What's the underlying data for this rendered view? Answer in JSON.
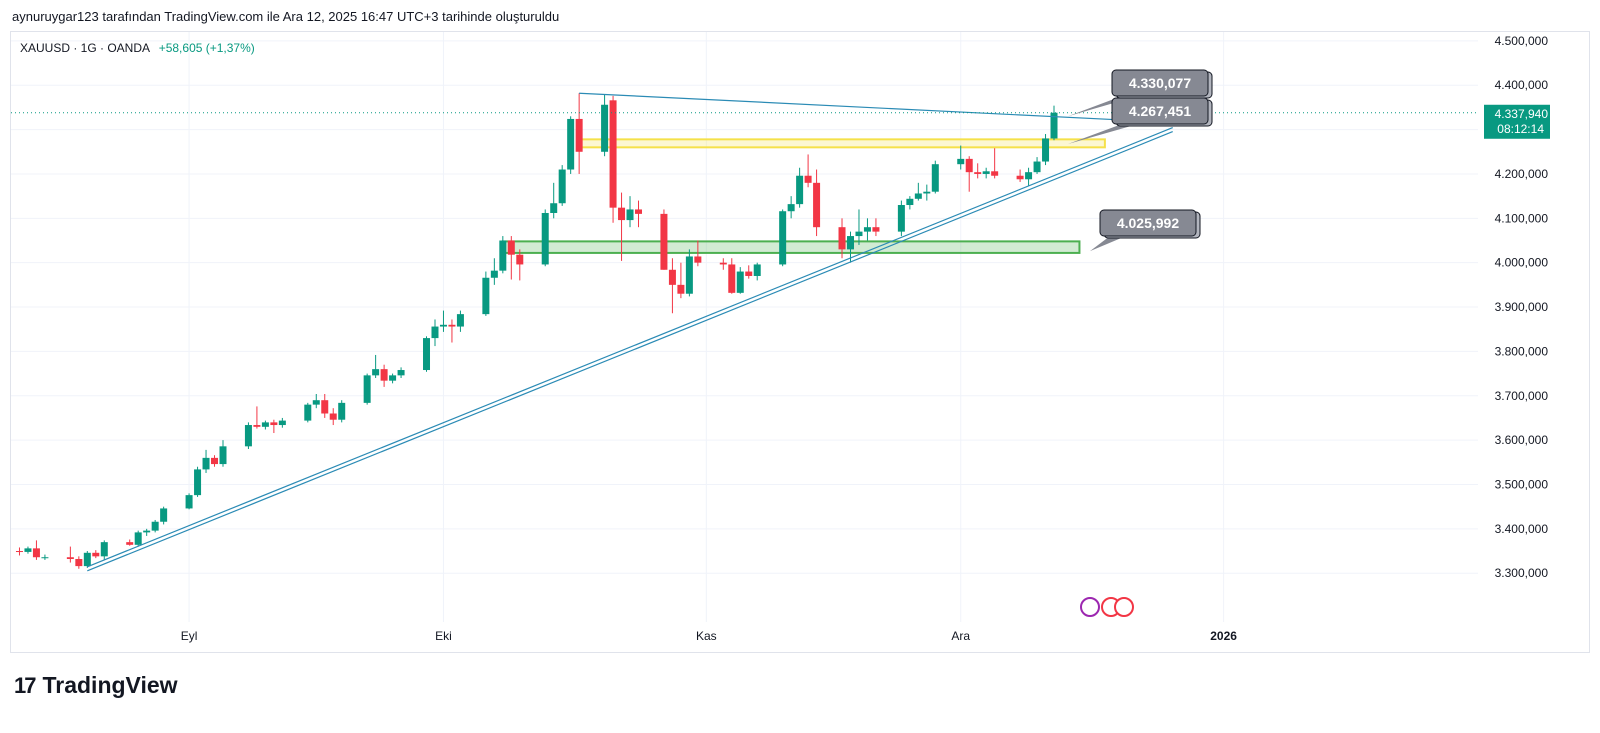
{
  "header": {
    "caption": "aynuruygar123 tarafından TradingView.com ile Ara 12, 2025 16:47 UTC+3 tarihinde oluşturuldu"
  },
  "legend": {
    "symbol": "XAUUSD · 1G · OANDA",
    "change": "+58,605 (+1,37%)"
  },
  "brand": {
    "logo": "17",
    "name": "TradingView"
  },
  "colors": {
    "up": "#089981",
    "down": "#f23645",
    "trendline": "#2b8bb5",
    "yellow_zone": "#f5e14a",
    "green_zone": "#4caf50",
    "callout": "#868993"
  },
  "chart_data": {
    "type": "candlestick",
    "symbol": "XAUUSD",
    "interval": "1G",
    "ylim": [
      3190000,
      4520000
    ],
    "y_ticks": [
      3300000,
      3400000,
      3500000,
      3600000,
      3700000,
      3800000,
      3900000,
      4000000,
      4100000,
      4200000,
      4300000,
      4400000,
      4500000
    ],
    "y_tick_labels": [
      "3.300,000",
      "3.400,000",
      "3.500,000",
      "3.600,000",
      "3.700,000",
      "3.800,000",
      "3.900,000",
      "4.000,000",
      "4.100,000",
      "4.200,000",
      "4.300,000",
      "4.400,000",
      "4.500,000"
    ],
    "x_labels": [
      {
        "label": "Eyl",
        "date": "2025-09-01"
      },
      {
        "label": "Eki",
        "date": "2025-10-01"
      },
      {
        "label": "Kas",
        "date": "2025-11-01"
      },
      {
        "label": "Ara",
        "date": "2025-12-01"
      },
      {
        "label": "2026",
        "date": "2026-01-01"
      }
    ],
    "xlim": [
      "2025-08-11",
      "2026-01-31"
    ],
    "last_price": {
      "label": "4.337,940",
      "countdown": "08:12:14",
      "value": 4337940
    },
    "candles": [
      [
        "2025-08-12",
        3350,
        3358,
        3340,
        3348
      ],
      [
        "2025-08-13",
        3348,
        3360,
        3344,
        3356
      ],
      [
        "2025-08-14",
        3356,
        3374,
        3330,
        3336
      ],
      [
        "2025-08-15",
        3336,
        3342,
        3330,
        3336
      ],
      [
        "2025-08-18",
        3336,
        3360,
        3324,
        3332
      ],
      [
        "2025-08-19",
        3332,
        3338,
        3310,
        3316
      ],
      [
        "2025-08-20",
        3316,
        3350,
        3312,
        3346
      ],
      [
        "2025-08-21",
        3346,
        3352,
        3334,
        3338
      ],
      [
        "2025-08-22",
        3338,
        3374,
        3330,
        3370
      ],
      [
        "2025-08-25",
        3370,
        3376,
        3362,
        3364
      ],
      [
        "2025-08-26",
        3364,
        3396,
        3360,
        3392
      ],
      [
        "2025-08-27",
        3392,
        3400,
        3384,
        3396
      ],
      [
        "2025-08-28",
        3396,
        3420,
        3392,
        3416
      ],
      [
        "2025-08-29",
        3416,
        3450,
        3410,
        3446
      ],
      [
        "2025-09-01",
        3446,
        3480,
        3444,
        3476
      ],
      [
        "2025-09-02",
        3476,
        3540,
        3472,
        3534
      ],
      [
        "2025-09-03",
        3534,
        3578,
        3526,
        3560
      ],
      [
        "2025-09-04",
        3560,
        3566,
        3540,
        3546
      ],
      [
        "2025-09-05",
        3546,
        3600,
        3540,
        3586
      ],
      [
        "2025-09-08",
        3586,
        3640,
        3580,
        3634
      ],
      [
        "2025-09-09",
        3634,
        3676,
        3626,
        3630
      ],
      [
        "2025-09-10",
        3630,
        3644,
        3624,
        3640
      ],
      [
        "2025-09-11",
        3640,
        3646,
        3616,
        3634
      ],
      [
        "2025-09-12",
        3634,
        3650,
        3628,
        3644
      ],
      [
        "2025-09-15",
        3644,
        3684,
        3640,
        3680
      ],
      [
        "2025-09-16",
        3680,
        3704,
        3672,
        3690
      ],
      [
        "2025-09-17",
        3690,
        3704,
        3650,
        3660
      ],
      [
        "2025-09-18",
        3660,
        3672,
        3634,
        3646
      ],
      [
        "2025-09-19",
        3646,
        3690,
        3640,
        3684
      ],
      [
        "2025-09-22",
        3684,
        3750,
        3680,
        3746
      ],
      [
        "2025-09-23",
        3746,
        3792,
        3740,
        3760
      ],
      [
        "2025-09-24",
        3760,
        3770,
        3720,
        3734
      ],
      [
        "2025-09-25",
        3734,
        3750,
        3728,
        3746
      ],
      [
        "2025-09-26",
        3746,
        3764,
        3740,
        3758
      ],
      [
        "2025-09-29",
        3758,
        3834,
        3754,
        3830
      ],
      [
        "2025-09-30",
        3830,
        3872,
        3812,
        3856
      ],
      [
        "2025-10-01",
        3856,
        3892,
        3844,
        3860
      ],
      [
        "2025-10-02",
        3860,
        3872,
        3820,
        3856
      ],
      [
        "2025-10-03",
        3856,
        3892,
        3844,
        3884
      ],
      [
        "2025-10-06",
        3884,
        3980,
        3880,
        3966
      ],
      [
        "2025-10-07",
        3966,
        4010,
        3950,
        3982
      ],
      [
        "2025-10-08",
        3982,
        4060,
        3976,
        4050
      ],
      [
        "2025-10-09",
        4050,
        4060,
        3962,
        4018
      ],
      [
        "2025-10-10",
        4018,
        4030,
        3960,
        3996
      ],
      [
        "2025-10-13",
        3996,
        4120,
        3992,
        4112
      ],
      [
        "2025-10-14",
        4112,
        4180,
        4100,
        4134
      ],
      [
        "2025-10-15",
        4134,
        4220,
        4128,
        4210
      ],
      [
        "2025-10-16",
        4210,
        4330,
        4200,
        4324
      ],
      [
        "2025-10-17",
        4324,
        4382,
        4200,
        4250
      ],
      [
        "2025-10-20",
        4250,
        4380,
        4240,
        4356
      ],
      [
        "2025-10-21",
        4366,
        4376,
        4090,
        4124
      ],
      [
        "2025-10-22",
        4124,
        4158,
        4004,
        4096
      ],
      [
        "2025-10-23",
        4096,
        4150,
        4080,
        4120
      ],
      [
        "2025-10-24",
        4120,
        4140,
        4080,
        4110
      ],
      [
        "2025-10-27",
        4110,
        4120,
        3984,
        3984
      ],
      [
        "2025-10-28",
        3984,
        4010,
        3886,
        3950
      ],
      [
        "2025-10-29",
        3950,
        4000,
        3920,
        3930
      ],
      [
        "2025-10-30",
        3930,
        4030,
        3924,
        4014
      ],
      [
        "2025-10-31",
        4014,
        4050,
        3992,
        4000
      ],
      [
        "2025-11-03",
        4000,
        4010,
        3984,
        3996
      ],
      [
        "2025-11-04",
        3996,
        4010,
        3930,
        3932
      ],
      [
        "2025-11-05",
        3932,
        3990,
        3930,
        3980
      ],
      [
        "2025-11-06",
        3980,
        3994,
        3964,
        3970
      ],
      [
        "2025-11-07",
        3970,
        4000,
        3960,
        3996
      ],
      [
        "2025-11-10",
        3996,
        4120,
        3992,
        4116
      ],
      [
        "2025-11-11",
        4116,
        4150,
        4100,
        4132
      ],
      [
        "2025-11-12",
        4132,
        4214,
        4124,
        4196
      ],
      [
        "2025-11-13",
        4196,
        4244,
        4170,
        4180
      ],
      [
        "2025-11-14",
        4180,
        4210,
        4060,
        4080
      ],
      [
        "2025-11-17",
        4080,
        4100,
        4010,
        4030
      ],
      [
        "2025-11-18",
        4030,
        4070,
        4000,
        4060
      ],
      [
        "2025-11-19",
        4060,
        4120,
        4040,
        4070
      ],
      [
        "2025-11-20",
        4070,
        4100,
        4050,
        4080
      ],
      [
        "2025-11-21",
        4080,
        4100,
        4060,
        4070
      ],
      [
        "2025-11-24",
        4070,
        4140,
        4060,
        4130
      ],
      [
        "2025-11-25",
        4130,
        4150,
        4120,
        4144
      ],
      [
        "2025-11-26",
        4144,
        4180,
        4140,
        4156
      ],
      [
        "2025-11-27",
        4156,
        4176,
        4140,
        4160
      ],
      [
        "2025-11-28",
        4160,
        4230,
        4156,
        4222
      ],
      [
        "2025-12-01",
        4222,
        4264,
        4210,
        4234
      ],
      [
        "2025-12-02",
        4234,
        4240,
        4160,
        4204
      ],
      [
        "2025-12-03",
        4204,
        4224,
        4190,
        4200
      ],
      [
        "2025-12-04",
        4200,
        4214,
        4190,
        4206
      ],
      [
        "2025-12-05",
        4206,
        4258,
        4190,
        4196
      ],
      [
        "2025-12-08",
        4196,
        4210,
        4182,
        4188
      ],
      [
        "2025-12-09",
        4188,
        4214,
        4174,
        4204
      ],
      [
        "2025-12-10",
        4204,
        4238,
        4200,
        4228
      ],
      [
        "2025-12-11",
        4228,
        4290,
        4220,
        4280
      ],
      [
        "2025-12-12",
        4280,
        4354,
        4276,
        4338
      ]
    ],
    "candle_fields": [
      "date",
      "open (thousands)",
      "high (thousands)",
      "low (thousands)",
      "close (thousands)"
    ],
    "trendlines": [
      {
        "name": "upper",
        "from": [
          "2025-10-17",
          4382000
        ],
        "to": [
          "2025-12-26",
          4316000
        ],
        "style": "solid"
      },
      {
        "name": "lower",
        "from": [
          "2025-08-20",
          3310000
        ],
        "to": [
          "2025-12-26",
          4300000
        ],
        "style": "double"
      }
    ],
    "zones": [
      {
        "name": "yellow",
        "from": "2025-10-17",
        "to": "2025-12-18",
        "top": 4278000,
        "bottom": 4260000
      },
      {
        "name": "green",
        "from": "2025-10-08",
        "to": "2025-12-15",
        "top": 4048000,
        "bottom": 4022000
      }
    ],
    "annotations": [
      {
        "label": "4.330,077",
        "value": 4330077
      },
      {
        "label": "4.267,451",
        "value": 4267451
      },
      {
        "label": "4.025,992",
        "value": 4025992
      }
    ]
  }
}
